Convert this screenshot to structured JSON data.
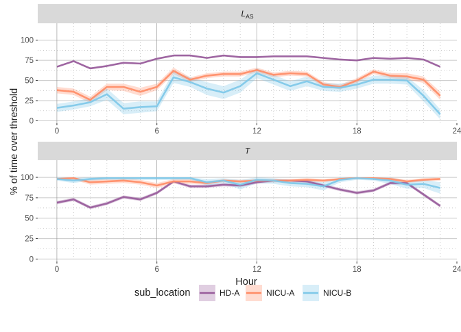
{
  "chart_data": {
    "type": "line",
    "xlabel": "Hour",
    "ylabel": "% of time over threshold",
    "xlim": [
      -1.15,
      24
    ],
    "xticks": [
      0,
      6,
      12,
      18,
      24
    ],
    "ylim": [
      -3,
      121
    ],
    "yticks": [
      0,
      25,
      50,
      75,
      100
    ],
    "grid": true,
    "legend": {
      "title": "sub_location",
      "position": "bottom",
      "entries": [
        "HD-A",
        "NICU-A",
        "NICU-B"
      ]
    },
    "colors": {
      "HD-A": "#985C9B",
      "NICU-A": "#FF8C66",
      "NICU-B": "#7EC8E8",
      "strip_background": "#d9d9d9",
      "grid_major": "#c8c8c8",
      "grid_minor": "#bdbdbd",
      "grid_vertical": "#8c8c8c"
    },
    "x": [
      0,
      1,
      2,
      3,
      4,
      5,
      6,
      7,
      8,
      9,
      10,
      11,
      12,
      13,
      14,
      15,
      16,
      17,
      18,
      19,
      20,
      21,
      22,
      23
    ],
    "panels": [
      {
        "strip": "L",
        "strip_subscript": "AS",
        "series": [
          {
            "name": "HD-A",
            "values": [
              67,
              74,
              65,
              68,
              72,
              71,
              77,
              81,
              81,
              78,
              81,
              79,
              79,
              80,
              80,
              80,
              78,
              76,
              75,
              78,
              77,
              78,
              76,
              67
            ],
            "lower": [
              66,
              73,
              64,
              67,
              71,
              70,
              76,
              80,
              80,
              77,
              80,
              78,
              78,
              79,
              79,
              79,
              77,
              75,
              74,
              77,
              76,
              77,
              75,
              66
            ],
            "upper": [
              68,
              75,
              66,
              69,
              73,
              72,
              78,
              82,
              82,
              79,
              82,
              80,
              80,
              81,
              81,
              81,
              79,
              77,
              76,
              79,
              78,
              79,
              77,
              68
            ]
          },
          {
            "name": "NICU-A",
            "values": [
              38,
              36,
              26,
              42,
              42,
              36,
              42,
              62,
              51,
              56,
              58,
              58,
              63,
              57,
              59,
              58,
              45,
              42,
              50,
              61,
              56,
              55,
              51,
              31
            ],
            "lower": [
              34,
              32,
              22,
              38,
              37,
              31,
              38,
              58,
              48,
              53,
              55,
              55,
              60,
              54,
              56,
              55,
              42,
              39,
              47,
              58,
              53,
              51,
              47,
              26
            ],
            "upper": [
              42,
              40,
              30,
              46,
              46,
              41,
              46,
              66,
              54,
              59,
              61,
              61,
              66,
              60,
              62,
              61,
              48,
              45,
              53,
              64,
              59,
              59,
              55,
              36
            ]
          },
          {
            "name": "NICU-B",
            "values": [
              16,
              19,
              23,
              33,
              15,
              17,
              18,
              54,
              48,
              40,
              35,
              43,
              59,
              51,
              43,
              49,
              42,
              41,
              45,
              51,
              51,
              50,
              31,
              8
            ],
            "lower": [
              11,
              14,
              18,
              26,
              8,
              10,
              12,
              47,
              42,
              32,
              27,
              35,
              53,
              45,
              37,
              43,
              37,
              36,
              40,
              46,
              46,
              45,
              24,
              2
            ],
            "upper": [
              21,
              24,
              28,
              40,
              22,
              24,
              24,
              61,
              54,
              48,
              43,
              51,
              65,
              57,
              49,
              55,
              47,
              46,
              50,
              56,
              56,
              55,
              38,
              14
            ]
          }
        ]
      },
      {
        "strip": "T",
        "strip_subscript": "",
        "series": [
          {
            "name": "HD-A",
            "values": [
              69,
              73,
              63,
              68,
              76,
              73,
              81,
              95,
              89,
              89,
              91,
              90,
              94,
              96,
              96,
              95,
              90,
              85,
              81,
              84,
              93,
              93,
              79,
              65
            ],
            "lower": [
              67,
              71,
              61,
              66,
              74,
              71,
              79,
              93,
              87,
              87,
              89,
              88,
              92,
              94,
              94,
              93,
              88,
              83,
              79,
              82,
              91,
              91,
              77,
              63
            ],
            "upper": [
              71,
              75,
              65,
              70,
              78,
              75,
              83,
              97,
              91,
              91,
              93,
              92,
              96,
              98,
              98,
              97,
              92,
              87,
              83,
              86,
              95,
              95,
              81,
              67
            ]
          },
          {
            "name": "NICU-A",
            "values": [
              98,
              99,
              94,
              95,
              96,
              94,
              90,
              95,
              95,
              93,
              96,
              95,
              96,
              96,
              96,
              97,
              96,
              98,
              99,
              99,
              98,
              95,
              97,
              98
            ],
            "lower": [
              97,
              97,
              91,
              92,
              93,
              91,
              87,
              92,
              92,
              91,
              94,
              93,
              94,
              94,
              94,
              95,
              94,
              97,
              98,
              98,
              96,
              93,
              95,
              96
            ],
            "upper": [
              99,
              100,
              97,
              98,
              99,
              97,
              93,
              98,
              98,
              95,
              98,
              97,
              98,
              98,
              98,
              99,
              98,
              99,
              100,
              100,
              100,
              97,
              99,
              100
            ],
            "band_color": "#FFD2C2"
          },
          {
            "name": "NICU-B",
            "values": [
              98,
              96,
              98,
              99,
              99,
              99,
              99,
              99,
              99,
              94,
              96,
              91,
              97,
              96,
              93,
              92,
              89,
              97,
              99,
              98,
              96,
              91,
              92,
              87
            ],
            "lower": [
              96,
              93,
              96,
              97,
              97,
              97,
              97,
              97,
              97,
              90,
              93,
              85,
              93,
              92,
              89,
              88,
              84,
              94,
              97,
              96,
              92,
              86,
              87,
              80
            ],
            "upper": [
              100,
              99,
              100,
              100,
              100,
              100,
              100,
              100,
              100,
              98,
              99,
              97,
              100,
              99,
              97,
              96,
              94,
              100,
              100,
              100,
              100,
              96,
              97,
              94
            ]
          }
        ]
      }
    ]
  }
}
